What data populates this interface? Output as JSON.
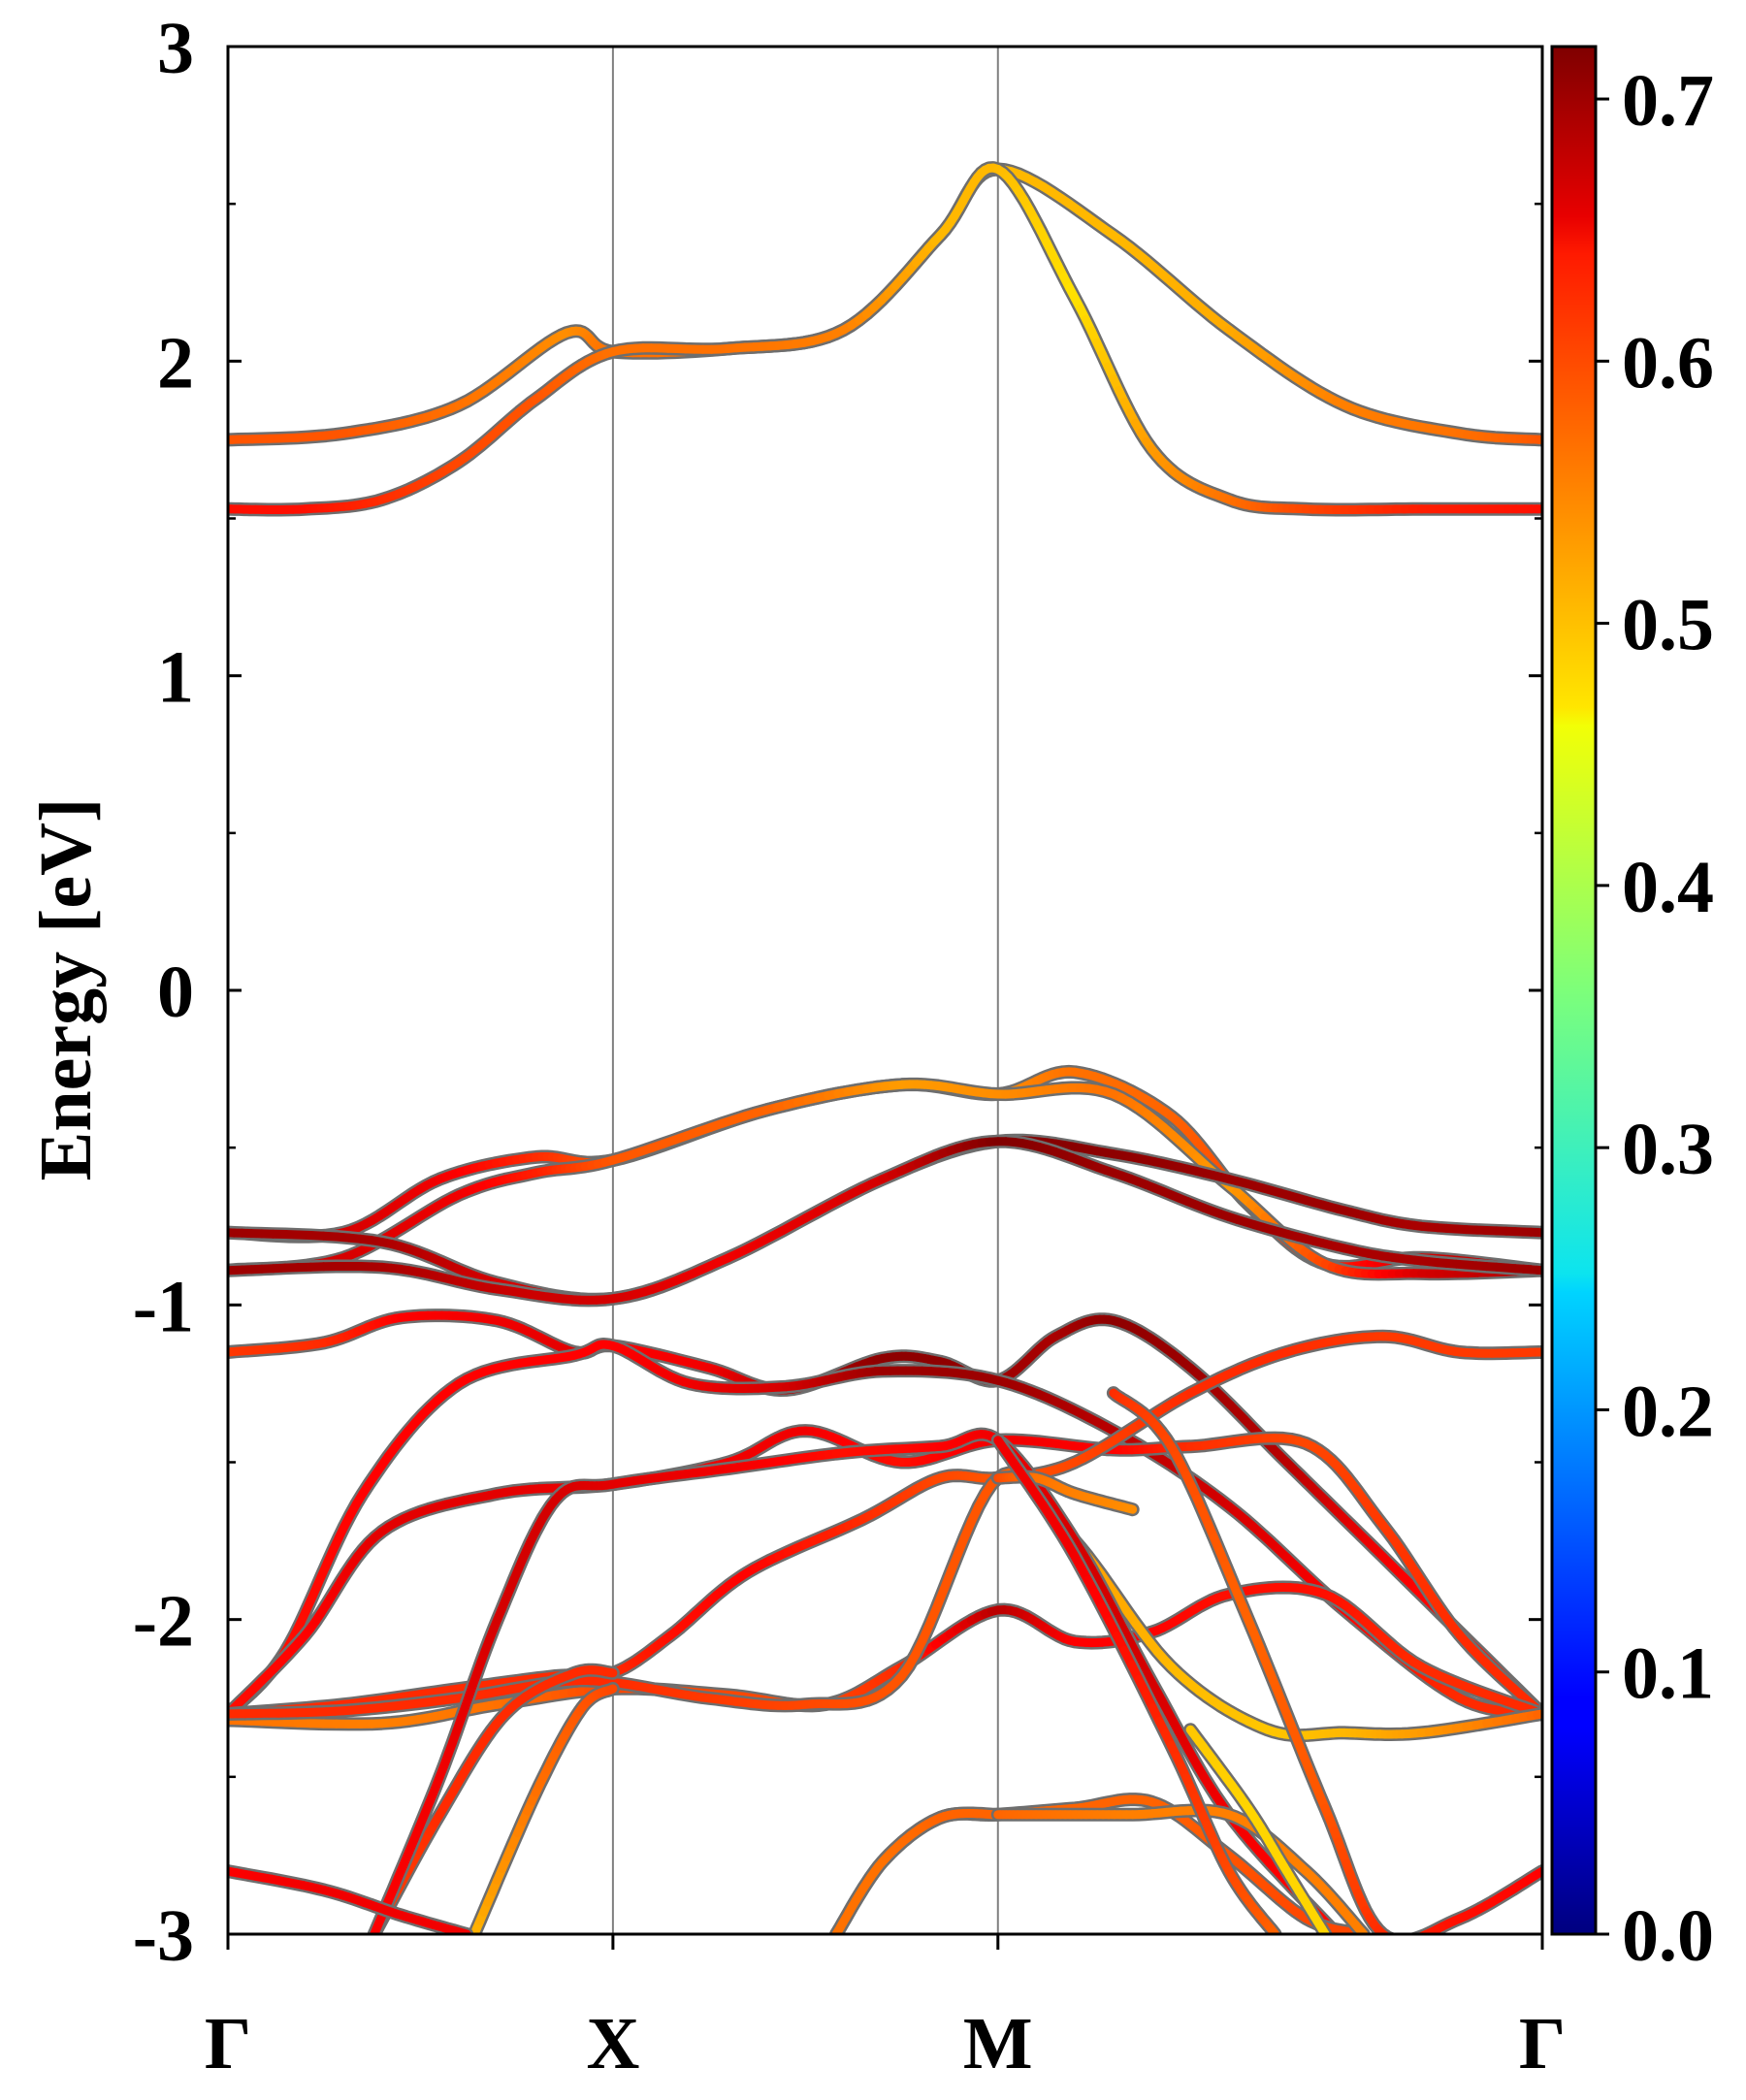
{
  "chart_data": {
    "type": "line",
    "title": "",
    "xlabel": "",
    "ylabel": "Energy [eV]",
    "ylim": [
      -3,
      3
    ],
    "xlim": [
      0,
      3.414
    ],
    "k_points": [
      {
        "label": "Γ",
        "x": 0
      },
      {
        "label": "X",
        "x": 1
      },
      {
        "label": "M",
        "x": 2
      },
      {
        "label": "Γ",
        "x": 3.414
      }
    ],
    "y_ticks": [
      {
        "value": 3,
        "label": "3"
      },
      {
        "value": 2,
        "label": "2"
      },
      {
        "value": 1,
        "label": "1"
      },
      {
        "value": 0,
        "label": "0"
      },
      {
        "value": -1,
        "label": "-1"
      },
      {
        "value": -2,
        "label": "-2"
      },
      {
        "value": -3,
        "label": "-3"
      }
    ],
    "y_minor_ticks": [
      2.5,
      1.5,
      0.5,
      -0.5,
      -1.5,
      -2.5
    ],
    "colorbar": {
      "range": [
        0.0,
        0.72
      ],
      "ticks": [
        {
          "value": 0.0,
          "label": "0.0"
        },
        {
          "value": 0.1,
          "label": "0.1"
        },
        {
          "value": 0.2,
          "label": "0.2"
        },
        {
          "value": 0.3,
          "label": "0.3"
        },
        {
          "value": 0.4,
          "label": "0.4"
        },
        {
          "value": 0.5,
          "label": "0.5"
        },
        {
          "value": 0.6,
          "label": "0.6"
        },
        {
          "value": 0.7,
          "label": "0.7"
        }
      ],
      "colormap": "jet"
    },
    "grid": false,
    "series": [
      {
        "x": [
          0,
          0.3,
          0.6,
          0.88,
          1.0,
          1.3,
          1.6,
          1.85,
          2.0,
          2.3,
          2.6,
          2.9,
          3.2,
          3.414
        ],
        "y": [
          1.75,
          1.77,
          1.86,
          2.09,
          2.03,
          2.04,
          2.1,
          2.4,
          2.61,
          2.4,
          2.1,
          1.86,
          1.77,
          1.75
        ],
        "w": [
          0.57,
          0.57,
          0.55,
          0.53,
          0.55,
          0.55,
          0.54,
          0.5,
          0.5,
          0.5,
          0.51,
          0.54,
          0.55,
          0.57
        ]
      },
      {
        "x": [
          0,
          0.2,
          0.4,
          0.6,
          0.8,
          1.0,
          1.3,
          1.6,
          1.85,
          2.0,
          2.2,
          2.4,
          2.6,
          2.8,
          3.1,
          3.414
        ],
        "y": [
          1.53,
          1.53,
          1.56,
          1.68,
          1.88,
          2.03,
          2.04,
          2.1,
          2.4,
          2.61,
          2.2,
          1.72,
          1.56,
          1.53,
          1.53,
          1.53
        ],
        "w": [
          0.62,
          0.62,
          0.6,
          0.58,
          0.57,
          0.55,
          0.55,
          0.54,
          0.5,
          0.5,
          0.47,
          0.52,
          0.55,
          0.58,
          0.61,
          0.62
        ]
      },
      {
        "x": [
          0,
          0.3,
          0.55,
          0.8,
          1.0,
          1.4,
          1.75,
          2.0,
          2.2,
          2.45,
          2.65,
          2.85,
          3.1,
          3.414
        ],
        "y": [
          -0.77,
          -0.77,
          -0.6,
          -0.53,
          -0.54,
          -0.38,
          -0.3,
          -0.33,
          -0.26,
          -0.4,
          -0.68,
          -0.87,
          -0.85,
          -0.89
        ],
        "w": [
          0.66,
          0.66,
          0.64,
          0.6,
          0.57,
          0.56,
          0.52,
          0.53,
          0.55,
          0.56,
          0.58,
          0.6,
          0.66,
          0.69
        ]
      },
      {
        "x": [
          0,
          0.3,
          0.6,
          0.8,
          1.0,
          1.4,
          1.75,
          2.0,
          2.3,
          2.6,
          2.85,
          3.1,
          3.414
        ],
        "y": [
          -0.89,
          -0.85,
          -0.65,
          -0.58,
          -0.54,
          -0.38,
          -0.3,
          -0.33,
          -0.33,
          -0.62,
          -0.87,
          -0.9,
          -0.89
        ],
        "w": [
          0.66,
          0.66,
          0.64,
          0.61,
          0.57,
          0.56,
          0.52,
          0.53,
          0.55,
          0.52,
          0.58,
          0.66,
          0.69
        ]
      },
      {
        "x": [
          0,
          0.4,
          0.7,
          1.0,
          1.3,
          1.7,
          2.0,
          2.3,
          2.6,
          2.9,
          3.1,
          3.414
        ],
        "y": [
          -0.77,
          -0.8,
          -0.93,
          -0.98,
          -0.85,
          -0.6,
          -0.48,
          -0.52,
          -0.6,
          -0.7,
          -0.75,
          -0.77
        ],
        "w": [
          0.7,
          0.69,
          0.66,
          0.66,
          0.64,
          0.66,
          0.72,
          0.71,
          0.7,
          0.7,
          0.69,
          0.7
        ]
      },
      {
        "x": [
          0,
          0.4,
          0.7,
          1.0,
          1.3,
          1.7,
          2.0,
          2.3,
          2.6,
          2.9,
          3.1,
          3.414
        ],
        "y": [
          -0.89,
          -0.88,
          -0.95,
          -0.98,
          -0.85,
          -0.6,
          -0.48,
          -0.58,
          -0.72,
          -0.82,
          -0.86,
          -0.89
        ],
        "w": [
          0.7,
          0.69,
          0.67,
          0.66,
          0.64,
          0.66,
          0.72,
          0.7,
          0.7,
          0.69,
          0.69,
          0.7
        ]
      },
      {
        "x": [
          0,
          0.25,
          0.45,
          0.7,
          0.9,
          1.0,
          1.25,
          1.45,
          1.7,
          1.85,
          2.0,
          2.15,
          2.3,
          2.5,
          2.75,
          3.0,
          3.414
        ],
        "y": [
          -1.15,
          -1.12,
          -1.04,
          -1.05,
          -1.15,
          -1.13,
          -1.2,
          -1.27,
          -1.17,
          -1.18,
          -1.24,
          -1.1,
          -1.05,
          -1.2,
          -1.5,
          -1.8,
          -2.3
        ],
        "w": [
          0.59,
          0.6,
          0.63,
          0.64,
          0.65,
          0.63,
          0.64,
          0.68,
          0.71,
          0.71,
          0.7,
          0.69,
          0.71,
          0.7,
          0.68,
          0.64,
          0.6
        ]
      },
      {
        "x": [
          0,
          0.15,
          0.35,
          0.6,
          0.9,
          1.0,
          1.2,
          1.45,
          1.7,
          2.0,
          2.3,
          2.6,
          2.9,
          3.2,
          3.414
        ],
        "y": [
          -2.3,
          -2.1,
          -1.6,
          -1.25,
          -1.16,
          -1.13,
          -1.25,
          -1.26,
          -1.21,
          -1.24,
          -1.4,
          -1.64,
          -1.97,
          -2.25,
          -2.3
        ],
        "w": [
          0.62,
          0.62,
          0.63,
          0.63,
          0.63,
          0.63,
          0.64,
          0.66,
          0.7,
          0.7,
          0.68,
          0.66,
          0.63,
          0.6,
          0.6
        ]
      },
      {
        "x": [
          0,
          0.2,
          0.4,
          0.7,
          1.0,
          1.3,
          1.5,
          1.75,
          2.0,
          2.3,
          2.5,
          2.8,
          3.0,
          3.2,
          3.414
        ],
        "y": [
          -2.3,
          -2.05,
          -1.72,
          -1.6,
          -1.57,
          -1.5,
          -1.4,
          -1.5,
          -1.43,
          -1.46,
          -1.45,
          -1.44,
          -1.7,
          -2.05,
          -2.3
        ],
        "w": [
          0.62,
          0.63,
          0.65,
          0.65,
          0.64,
          0.64,
          0.64,
          0.62,
          0.64,
          0.63,
          0.6,
          0.58,
          0.59,
          0.6,
          0.6
        ]
      },
      {
        "x": [
          0,
          0.3,
          0.6,
          0.85,
          1.0,
          1.15,
          1.35,
          1.65,
          1.85,
          2.0,
          2.2,
          2.5,
          2.75,
          3.0,
          3.2,
          3.414
        ],
        "y": [
          -2.3,
          -2.27,
          -2.22,
          -2.18,
          -2.17,
          -2.05,
          -1.85,
          -1.68,
          -1.55,
          -1.55,
          -1.5,
          -1.28,
          -1.15,
          -1.1,
          -1.15,
          -1.15
        ],
        "w": [
          0.6,
          0.6,
          0.6,
          0.6,
          0.6,
          0.62,
          0.63,
          0.6,
          0.58,
          0.57,
          0.58,
          0.6,
          0.6,
          0.59,
          0.59,
          0.59
        ]
      },
      {
        "x": [
          0,
          0.4,
          0.7,
          1.0,
          1.3,
          1.55,
          1.75,
          2.0,
          2.2,
          2.4,
          2.6,
          2.85,
          3.1,
          3.414
        ],
        "y": [
          -2.32,
          -2.33,
          -2.27,
          -2.22,
          -2.24,
          -2.27,
          -2.15,
          -1.97,
          -2.07,
          -2.04,
          -1.92,
          -1.92,
          -2.15,
          -2.3
        ],
        "w": [
          0.55,
          0.54,
          0.55,
          0.58,
          0.58,
          0.58,
          0.6,
          0.68,
          0.63,
          0.63,
          0.62,
          0.62,
          0.6,
          0.6
        ]
      },
      {
        "x": [
          0,
          0.3,
          0.6,
          0.85,
          1.0,
          1.25,
          1.5,
          1.75,
          2.0,
          2.2,
          2.45,
          2.7,
          2.9,
          3.1,
          3.414
        ],
        "y": [
          -2.3,
          -2.29,
          -2.25,
          -2.2,
          -2.2,
          -2.25,
          -2.27,
          -2.18,
          -1.55,
          -1.75,
          -2.15,
          -2.35,
          -2.36,
          -2.36,
          -2.3
        ],
        "w": [
          0.6,
          0.6,
          0.6,
          0.6,
          0.6,
          0.59,
          0.58,
          0.57,
          0.57,
          0.52,
          0.5,
          0.49,
          0.5,
          0.52,
          0.56
        ]
      },
      {
        "x": [
          0.38,
          0.55,
          0.72,
          0.9,
          1.0
        ],
        "y": [
          -3.0,
          -2.62,
          -2.3,
          -2.17,
          -2.17
        ],
        "w": [
          0.58,
          0.6,
          0.6,
          0.6,
          0.6
        ]
      },
      {
        "x": [
          0.64,
          0.8,
          0.92,
          1.0
        ],
        "y": [
          -3.0,
          -2.55,
          -2.28,
          -2.22
        ],
        "w": [
          0.5,
          0.55,
          0.57,
          0.58
        ]
      },
      {
        "x": [
          0.38,
          0.55,
          0.7,
          0.85,
          1.0,
          1.3,
          1.6,
          1.85,
          2.0,
          2.2,
          2.4,
          2.6,
          2.88
        ],
        "y": [
          -3.0,
          -2.5,
          -2.0,
          -1.62,
          -1.57,
          -1.52,
          -1.47,
          -1.45,
          -1.43,
          -1.75,
          -2.2,
          -2.62,
          -3.0
        ],
        "w": [
          0.63,
          0.64,
          0.66,
          0.66,
          0.65,
          0.64,
          0.62,
          0.63,
          0.64,
          0.66,
          0.66,
          0.64,
          0.62
        ]
      },
      {
        "x": [
          0,
          0.25,
          0.45,
          0.62
        ],
        "y": [
          -2.8,
          -2.86,
          -2.94,
          -3.0
        ],
        "w": [
          0.63,
          0.64,
          0.64,
          0.64
        ]
      },
      {
        "x": [
          1.58,
          1.7,
          1.85,
          2.0,
          2.2,
          2.4,
          2.6,
          2.8,
          2.95
        ],
        "y": [
          -3.0,
          -2.77,
          -2.63,
          -2.62,
          -2.6,
          -2.58,
          -2.75,
          -2.95,
          -3.0
        ],
        "w": [
          0.55,
          0.56,
          0.56,
          0.56,
          0.56,
          0.56,
          0.57,
          0.58,
          0.58
        ]
      },
      {
        "x": [
          1.58,
          1.7,
          1.85,
          2.0
        ],
        "y": [
          -3.0,
          -2.77,
          -2.63,
          -2.62
        ],
        "w": [
          0.55,
          0.55,
          0.56,
          0.56
        ]
      },
      {
        "x": [
          2.0,
          2.15,
          2.35,
          2.6,
          2.8,
          2.95
        ],
        "y": [
          -2.62,
          -2.62,
          -2.62,
          -2.62,
          -2.8,
          -3.0
        ],
        "w": [
          0.56,
          0.55,
          0.54,
          0.54,
          0.54,
          0.54
        ]
      },
      {
        "x": [
          2.0,
          2.1,
          2.2,
          2.35
        ],
        "y": [
          -1.55,
          -1.55,
          -1.6,
          -1.65
        ],
        "w": [
          0.58,
          0.55,
          0.54,
          0.53
        ]
      },
      {
        "x": [
          2.3,
          2.45,
          2.65,
          2.85,
          3.0,
          3.2,
          3.414
        ],
        "y": [
          -1.28,
          -1.45,
          -2.0,
          -2.6,
          -3.0,
          -2.95,
          -2.8
        ],
        "w": [
          0.6,
          0.58,
          0.56,
          0.57,
          0.6,
          0.62,
          0.63
        ]
      },
      {
        "x": [
          2.0,
          2.2,
          2.45,
          2.6,
          2.72
        ],
        "y": [
          -1.43,
          -1.8,
          -2.4,
          -2.8,
          -3.0
        ],
        "w": [
          0.64,
          0.64,
          0.6,
          0.58,
          0.56
        ]
      },
      {
        "x": [
          2.5,
          2.65,
          2.75,
          2.85
        ],
        "y": [
          -2.35,
          -2.6,
          -2.8,
          -3.0
        ],
        "w": [
          0.49,
          0.48,
          0.48,
          0.48
        ]
      }
    ]
  }
}
